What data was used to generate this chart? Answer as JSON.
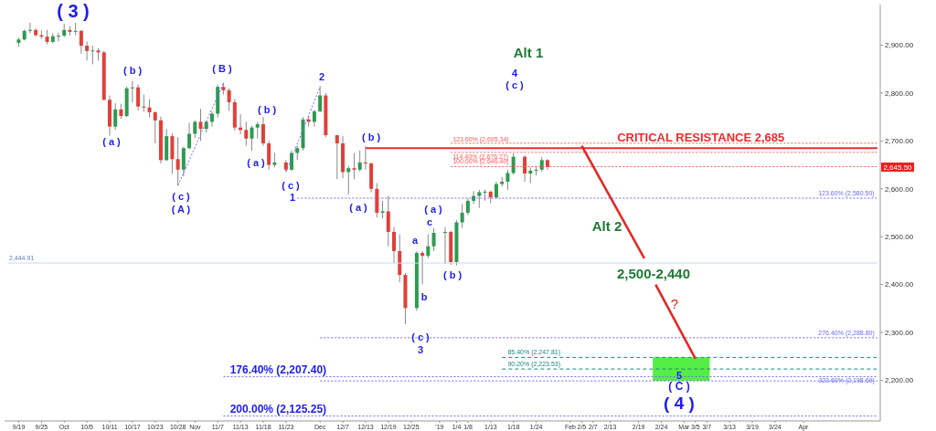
{
  "chart_data": {
    "type": "candlestick",
    "categories": [
      null,
      null,
      "9/19",
      null,
      null,
      null,
      "9/25",
      null,
      null,
      null,
      "Oct",
      null,
      null,
      null,
      "10/5",
      null,
      null,
      null,
      "10/11",
      null,
      null,
      null,
      "10/17",
      null,
      null,
      null,
      "10/23",
      null,
      null,
      null,
      "10/28",
      null,
      null,
      "Nov",
      null,
      null,
      null,
      "11/7",
      null,
      null,
      null,
      "11/13",
      null,
      null,
      null,
      "11/18",
      null,
      null,
      null,
      "11/23",
      null,
      null,
      null,
      null,
      null,
      "Dec",
      null,
      null,
      null,
      "12/7",
      null,
      null,
      null,
      "12/13",
      null,
      null,
      null,
      "12/19",
      null,
      null,
      null,
      "12/25",
      null,
      null,
      null,
      null,
      "'19",
      null,
      null,
      "1/4",
      null,
      "1/8",
      null,
      null,
      null,
      "1/13",
      null,
      null,
      null,
      "1/18",
      null,
      null,
      null,
      "1/24",
      null,
      null,
      null,
      null,
      null,
      "Feb",
      null,
      "2/5",
      null,
      "2/7",
      null,
      null,
      "2/13",
      null,
      null,
      null,
      null,
      "2/19",
      null,
      null,
      null,
      "2/24",
      null,
      null,
      null,
      "Mar",
      null,
      "3/5",
      null,
      "3/7",
      null,
      null,
      null,
      "3/13",
      null,
      null,
      null,
      "3/19",
      null,
      null,
      null,
      "3/24",
      null,
      null,
      null,
      null,
      "Apr",
      null,
      null,
      null,
      null,
      null,
      null,
      null,
      null,
      null,
      null,
      null,
      null,
      null
    ],
    "ohlc": [
      null,
      null,
      [
        2905,
        2916,
        2897,
        2912
      ],
      [
        2912,
        2933,
        2910,
        2930
      ],
      [
        2930,
        2947,
        2925,
        2932
      ],
      [
        2932,
        2935,
        2918,
        2921
      ],
      [
        2921,
        2931,
        2913,
        2918
      ],
      [
        2918,
        2932,
        2902,
        2907
      ],
      [
        2907,
        2925,
        2904,
        2919
      ],
      [
        2919,
        2926,
        2908,
        2920
      ],
      [
        2920,
        2945,
        2917,
        2932
      ],
      [
        2932,
        2940,
        2920,
        2928
      ],
      [
        2928,
        2947,
        2921,
        2930
      ],
      [
        2930,
        2932,
        2882,
        2899
      ],
      [
        2899,
        2908,
        2868,
        2888
      ],
      [
        2888,
        2899,
        2860,
        2889
      ],
      [
        2889,
        2894,
        2868,
        2885
      ],
      [
        2885,
        2888,
        2785,
        2786
      ],
      [
        2786,
        2795,
        2711,
        2730
      ],
      [
        2730,
        2779,
        2723,
        2766
      ],
      [
        2766,
        2778,
        2746,
        2752
      ],
      [
        2752,
        2814,
        2750,
        2810
      ],
      [
        2810,
        2825,
        2780,
        2812
      ],
      [
        2812,
        2818,
        2764,
        2772
      ],
      [
        2772,
        2797,
        2761,
        2770
      ],
      [
        2770,
        2787,
        2749,
        2760
      ],
      [
        2760,
        2762,
        2695,
        2743
      ],
      [
        2743,
        2751,
        2653,
        2660
      ],
      [
        2660,
        2725,
        2658,
        2710
      ],
      [
        2710,
        2716,
        2631,
        2662
      ],
      [
        2662,
        2708,
        2607,
        2640
      ],
      [
        2640,
        2688,
        2626,
        2685
      ],
      [
        2685,
        2738,
        2683,
        2715
      ],
      [
        2715,
        2743,
        2706,
        2740
      ],
      [
        2740,
        2767,
        2700,
        2725
      ],
      [
        2725,
        2743,
        2717,
        2740
      ],
      [
        2740,
        2761,
        2730,
        2757
      ],
      [
        2757,
        2818,
        2749,
        2813
      ],
      [
        2813,
        2822,
        2797,
        2806
      ],
      [
        2806,
        2810,
        2763,
        2781
      ],
      [
        2781,
        2788,
        2722,
        2728
      ],
      [
        2728,
        2756,
        2714,
        2723
      ],
      [
        2723,
        2740,
        2690,
        2705
      ],
      [
        2705,
        2732,
        2680,
        2728
      ],
      [
        2728,
        2740,
        2705,
        2735
      ],
      [
        2735,
        2750,
        2690,
        2695
      ],
      [
        2695,
        2700,
        2640,
        2650
      ],
      [
        2650,
        2675,
        2645,
        2655
      ],
      null,
      [
        2655,
        2660,
        2636,
        2640
      ],
      [
        2640,
        2680,
        2638,
        2675
      ],
      [
        2675,
        2690,
        2660,
        2685
      ],
      [
        2685,
        2750,
        2680,
        2745
      ],
      [
        2745,
        2752,
        2730,
        2740
      ],
      [
        2740,
        2765,
        2730,
        2762
      ],
      [
        2762,
        2815,
        2760,
        2795
      ],
      [
        2795,
        2800,
        2708,
        2712
      ],
      null,
      [
        2712,
        2713,
        2620,
        2695
      ],
      [
        2695,
        2710,
        2622,
        2635
      ],
      [
        2635,
        2648,
        2588,
        2643
      ],
      [
        2643,
        2675,
        2620,
        2640
      ],
      [
        2640,
        2680,
        2636,
        2655
      ],
      [
        2655,
        2689,
        2640,
        2653
      ],
      [
        2653,
        2655,
        2593,
        2600
      ],
      [
        2600,
        2612,
        2540,
        2550
      ],
      [
        2550,
        2575,
        2538,
        2553
      ],
      [
        2553,
        2585,
        2480,
        2510
      ],
      [
        2510,
        2520,
        2445,
        2470
      ],
      [
        2470,
        2505,
        2405,
        2420
      ],
      [
        2420,
        2424,
        2317,
        2351
      ],
      null,
      [
        2351,
        2470,
        2345,
        2466
      ],
      [
        2466,
        2470,
        2400,
        2460
      ],
      [
        2460,
        2505,
        2455,
        2480
      ],
      [
        2480,
        2518,
        2470,
        2508
      ],
      null,
      [
        2508,
        2520,
        2443,
        2510
      ],
      [
        2510,
        2512,
        2441,
        2447
      ],
      [
        2447,
        2535,
        2440,
        2530
      ],
      [
        2530,
        2568,
        2518,
        2550
      ],
      [
        2550,
        2580,
        2545,
        2575
      ],
      [
        2575,
        2595,
        2568,
        2585
      ],
      [
        2585,
        2598,
        2560,
        2593
      ],
      [
        2593,
        2598,
        2575,
        2594
      ],
      [
        2594,
        2596,
        2570,
        2582
      ],
      [
        2582,
        2615,
        2579,
        2610
      ],
      [
        2610,
        2625,
        2605,
        2615
      ],
      [
        2615,
        2640,
        2598,
        2633
      ],
      [
        2633,
        2674,
        2630,
        2667
      ],
      null,
      [
        2667,
        2670,
        2615,
        2632
      ],
      [
        2632,
        2645,
        2612,
        2638
      ],
      [
        2638,
        2648,
        2628,
        2640
      ],
      [
        2640,
        2666,
        2636,
        2660
      ],
      [
        2660,
        2662,
        2640,
        2645.5
      ],
      null,
      null,
      null,
      null,
      null,
      null,
      null,
      null,
      null,
      null,
      null,
      null,
      null,
      null,
      null,
      null,
      null,
      null,
      null,
      null,
      null,
      null,
      null,
      null,
      null,
      null,
      null,
      null,
      null,
      null,
      null,
      null,
      null,
      null,
      null,
      null,
      null,
      null,
      null,
      null,
      null,
      null,
      null,
      null,
      null,
      null,
      null,
      null,
      null,
      null,
      null,
      null,
      null,
      null,
      null,
      null,
      null,
      null
    ],
    "series": [
      {
        "type": "line",
        "color": "#6b6bff",
        "line_style": "dotted",
        "values": [
          null,
          null,
          null,
          null,
          null,
          null,
          null,
          null,
          null,
          null,
          null,
          null,
          null,
          null,
          null,
          null,
          null,
          null,
          null,
          null,
          null,
          null,
          null,
          null,
          null,
          null,
          null,
          null,
          null,
          null,
          2607,
          null,
          null,
          null,
          null,
          null,
          null,
          null,
          2821,
          null,
          null,
          null,
          null,
          null,
          null,
          null,
          null,
          null,
          null,
          null,
          null,
          null,
          null,
          null,
          null,
          null,
          null,
          null,
          null,
          null,
          null,
          null,
          null,
          null,
          null,
          null,
          null,
          null,
          null,
          null,
          null,
          null,
          null,
          null,
          null,
          null,
          null,
          null,
          null,
          null,
          null,
          null,
          null,
          null,
          null,
          null,
          null,
          null,
          null,
          null,
          null,
          null,
          null,
          null,
          null,
          null,
          null,
          null,
          null,
          null,
          null,
          null,
          null,
          null,
          null,
          null,
          null,
          null,
          null,
          null,
          null,
          null,
          null,
          null,
          null,
          null,
          null,
          null,
          null,
          null,
          null,
          null,
          null,
          null,
          null,
          null,
          null,
          null,
          null,
          null,
          null,
          null,
          null,
          null,
          null,
          null,
          null,
          null,
          null,
          null,
          null,
          null,
          null,
          null,
          null,
          null,
          null,
          null,
          null,
          null,
          null,
          null,
          null,
          null
        ]
      },
      {
        "type": "line",
        "color": "#6b6bff",
        "line_style": "dotted",
        "values": [
          null,
          null,
          null,
          null,
          null,
          null,
          null,
          null,
          null,
          null,
          null,
          null,
          null,
          null,
          null,
          null,
          null,
          null,
          null,
          null,
          null,
          null,
          null,
          null,
          null,
          null,
          null,
          null,
          null,
          null,
          null,
          null,
          null,
          null,
          null,
          null,
          null,
          null,
          null,
          null,
          null,
          null,
          null,
          null,
          null,
          null,
          null,
          null,
          null,
          2636,
          null,
          null,
          null,
          null,
          null,
          2813,
          null,
          null,
          null,
          null,
          null,
          null,
          null,
          null,
          null,
          null,
          null,
          null,
          null,
          null,
          null,
          null,
          null,
          null,
          null,
          null,
          null,
          null,
          null,
          null,
          null,
          null,
          null,
          null,
          null,
          null,
          null,
          null,
          null,
          null,
          null,
          null,
          null,
          null,
          null,
          null,
          null,
          null,
          null,
          null,
          null,
          null,
          null,
          null,
          null,
          null,
          null,
          null,
          null,
          null,
          null,
          null,
          null,
          null,
          null,
          null,
          null,
          null,
          null,
          null,
          null,
          null,
          null,
          null,
          null,
          null,
          null,
          null,
          null,
          null,
          null,
          null,
          null,
          null,
          null,
          null,
          null,
          null,
          null,
          null,
          null,
          null,
          null,
          null,
          null,
          null,
          null,
          null,
          null,
          null,
          null,
          null,
          null,
          null
        ]
      },
      {
        "type": "line",
        "color": "#e8231f",
        "line_style": "solid",
        "values": [
          null,
          null,
          null,
          null,
          null,
          null,
          null,
          null,
          null,
          null,
          null,
          null,
          null,
          null,
          null,
          null,
          null,
          null,
          null,
          null,
          null,
          null,
          null,
          null,
          null,
          null,
          null,
          null,
          null,
          null,
          null,
          null,
          null,
          null,
          null,
          null,
          null,
          null,
          null,
          null,
          null,
          null,
          null,
          null,
          null,
          null,
          null,
          null,
          null,
          null,
          null,
          null,
          null,
          null,
          null,
          null,
          null,
          null,
          null,
          null,
          null,
          null,
          null,
          null,
          null,
          null,
          null,
          null,
          null,
          null,
          null,
          null,
          null,
          null,
          null,
          null,
          null,
          null,
          null,
          null,
          null,
          null,
          null,
          null,
          null,
          null,
          null,
          null,
          null,
          null,
          null,
          null,
          null,
          null,
          null,
          null,
          null,
          null,
          null,
          null,
          null,
          2690,
          null,
          null,
          null,
          null,
          null,
          null,
          null,
          null,
          null,
          null,
          2455,
          null,
          null,
          null,
          null,
          null,
          null,
          null,
          null,
          null,
          null,
          null,
          null,
          null,
          null,
          null,
          null,
          null,
          null,
          null,
          null,
          null,
          null,
          null,
          null,
          null,
          null,
          null,
          null,
          null,
          null,
          null,
          null,
          null,
          null,
          null,
          null,
          null,
          null,
          null,
          null,
          null
        ]
      },
      {
        "type": "line",
        "color": "#e8231f",
        "line_style": "solid",
        "values": [
          null,
          null,
          null,
          null,
          null,
          null,
          null,
          null,
          null,
          null,
          null,
          null,
          null,
          null,
          null,
          null,
          null,
          null,
          null,
          null,
          null,
          null,
          null,
          null,
          null,
          null,
          null,
          null,
          null,
          null,
          null,
          null,
          null,
          null,
          null,
          null,
          null,
          null,
          null,
          null,
          null,
          null,
          null,
          null,
          null,
          null,
          null,
          null,
          null,
          null,
          null,
          null,
          null,
          null,
          null,
          null,
          null,
          null,
          null,
          null,
          null,
          null,
          null,
          null,
          null,
          null,
          null,
          null,
          null,
          null,
          null,
          null,
          null,
          null,
          null,
          null,
          null,
          null,
          null,
          null,
          null,
          null,
          null,
          null,
          null,
          null,
          null,
          null,
          null,
          null,
          null,
          null,
          null,
          null,
          null,
          null,
          null,
          null,
          null,
          null,
          null,
          null,
          null,
          null,
          null,
          null,
          null,
          null,
          null,
          null,
          null,
          null,
          null,
          null,
          2400,
          null,
          null,
          null,
          null,
          null,
          null,
          2245,
          null,
          null,
          null,
          null,
          null,
          null,
          null,
          null,
          null,
          null,
          null,
          null,
          null,
          null,
          null,
          null,
          null,
          null,
          null,
          null,
          null,
          null,
          null,
          null,
          null,
          null,
          null,
          null,
          null,
          null,
          null,
          null
        ]
      }
    ],
    "bands": [
      {
        "axis": "y",
        "from": 2199,
        "to": 2248,
        "color": "#55ee44"
      }
    ],
    "ylim": [
      2115,
      2985
    ],
    "yticks": [
      {
        "value": 2200,
        "label": "2,200.00"
      },
      {
        "value": 2300,
        "label": "2,300.00"
      },
      {
        "value": 2400,
        "label": "2,400.00"
      },
      {
        "value": 2500,
        "label": "2,500.00"
      },
      {
        "value": 2600,
        "label": "2,600.00"
      },
      {
        "value": 2700,
        "label": "2,700.00"
      },
      {
        "value": 2800,
        "label": "2,800.00"
      },
      {
        "value": 2900,
        "label": "2,900.00"
      }
    ],
    "ref_lines": [
      {
        "axis": "y",
        "value": 2685,
        "label": "CRITICAL RESISTANCE 2,685",
        "color": "#ee2b2b",
        "line_style": "solid"
      },
      {
        "axis": "y",
        "value": 2695.34,
        "label": "123.60% (2,695.34)",
        "color": "#ff5a5a",
        "line_style": "dotted"
      },
      {
        "axis": "y",
        "value": 2676.27,
        "label": "114.40% (2,676.27)",
        "color": "#ff5a5a",
        "line_style": "dotted"
      },
      {
        "axis": "y",
        "value": 2646.4,
        "label": "100.00% (2,646.40)",
        "color": "#ff5a5a",
        "line_style": "dotted"
      },
      {
        "axis": "y",
        "value": 2580.5,
        "label": "123.60% (2,580.50)",
        "color": "#6b6bff",
        "line_style": "dotted"
      },
      {
        "axis": "y",
        "value": 2444.91,
        "label": "2,444.91",
        "color": "#c9d9f2",
        "line_style": "solid"
      },
      {
        "axis": "y",
        "value": 2288.8,
        "label": "276.40% (2,288.80)",
        "color": "#6b6bff",
        "line_style": "dotted"
      },
      {
        "axis": "y",
        "value": 2247.81,
        "label": "85.40% (2,247.81)",
        "color": "#178a7e",
        "line_style": "dashed"
      },
      {
        "axis": "y",
        "value": 2223.53,
        "label": "90.20% (2,223.53)",
        "color": "#178a7e",
        "line_style": "dashed"
      },
      {
        "axis": "y",
        "value": 2207.4,
        "label": "176.40% (2,207.40)",
        "color": "#6b6bff",
        "line_style": "dotted"
      },
      {
        "axis": "y",
        "value": 2198.69,
        "label": "323.60% (2,198.69)",
        "color": "#6b6bff",
        "line_style": "dotted"
      },
      {
        "axis": "y",
        "value": 2125.25,
        "label": "200.00% (2,125.25)",
        "color": "#6b6bff",
        "line_style": "dotted"
      }
    ],
    "annotations": [
      "( 3 )",
      "( a )",
      "( b )",
      "( c )",
      "( A )",
      "( B )",
      "( a )",
      "( b )",
      "( c )",
      "1",
      "2",
      "( a )",
      "( b )",
      "( c )",
      "3",
      "a",
      "b",
      "c",
      "( a )",
      "( b )",
      "4",
      "( c )",
      "Alt 1",
      "Alt 2",
      "2,500-2,440",
      "?",
      "5",
      "( C )",
      "( 4 )",
      "2,645.50"
    ]
  }
}
